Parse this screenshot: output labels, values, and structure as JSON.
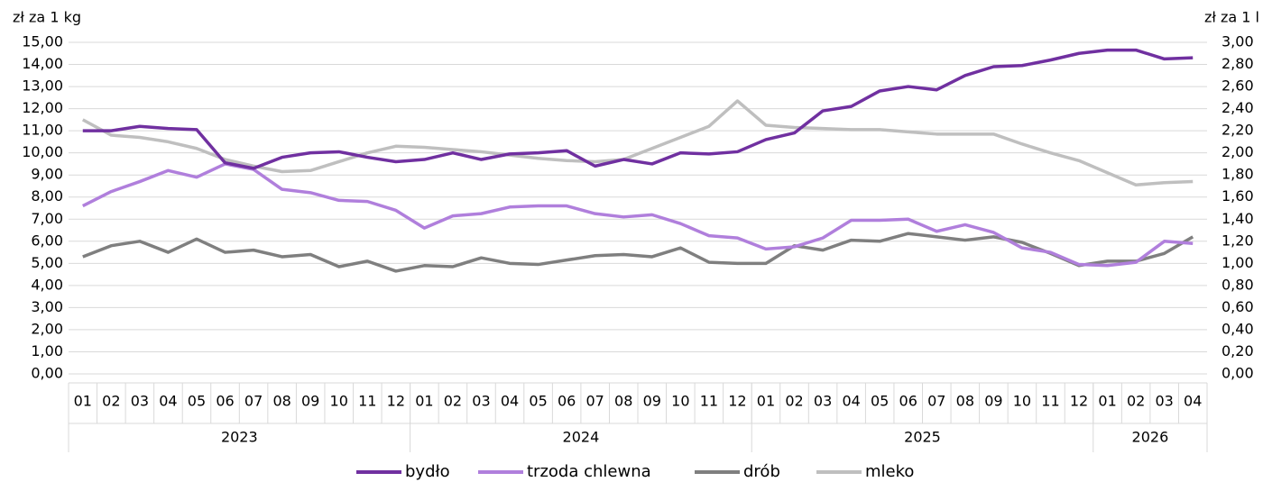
{
  "chart_data": {
    "type": "line",
    "y_label": "zł za 1 kg",
    "y2_label": "zł za 1 l",
    "categories": [
      "01",
      "02",
      "03",
      "04",
      "05",
      "06",
      "07",
      "08",
      "09",
      "10",
      "11",
      "12",
      "01",
      "02",
      "03",
      "04",
      "05",
      "06",
      "07",
      "08",
      "09",
      "10",
      "11",
      "12",
      "01",
      "02",
      "03",
      "04",
      "05",
      "06",
      "07",
      "08",
      "09",
      "10",
      "11",
      "12",
      "01",
      "02",
      "03",
      "04"
    ],
    "category_groups": [
      {
        "name": "2023",
        "size": 12
      },
      {
        "name": "2024",
        "size": 12
      },
      {
        "name": "2025",
        "size": 12
      },
      {
        "name": "2026",
        "size": 4
      }
    ],
    "series": [
      {
        "name": "bydło",
        "color": "#7030a0",
        "values": [
          11.0,
          11.0,
          11.2,
          11.1,
          11.05,
          9.55,
          9.3,
          9.8,
          10.0,
          10.05,
          9.8,
          9.6,
          9.7,
          10.0,
          9.7,
          9.95,
          10.0,
          10.1,
          9.4,
          9.7,
          9.5,
          10.0,
          9.95,
          10.05,
          10.6,
          10.9,
          11.9,
          12.1,
          12.8,
          13.0,
          12.85,
          13.5,
          13.9,
          13.95,
          14.2,
          14.5,
          14.65,
          14.65,
          14.25,
          14.3
        ]
      },
      {
        "name": "trzoda chlewna",
        "color": "#b07fdc",
        "values": [
          7.6,
          8.25,
          8.7,
          9.2,
          8.9,
          9.5,
          9.25,
          8.35,
          8.2,
          7.85,
          7.8,
          7.4,
          6.6,
          7.15,
          7.25,
          7.55,
          7.6,
          7.6,
          7.25,
          7.1,
          7.2,
          6.8,
          6.25,
          6.15,
          5.65,
          5.75,
          6.15,
          6.95,
          6.95,
          7.0,
          6.45,
          6.75,
          6.4,
          5.7,
          5.5,
          4.95,
          4.9,
          5.05,
          6.0,
          5.9
        ]
      },
      {
        "name": "drób",
        "color": "#7f7f7f",
        "values": [
          5.3,
          5.8,
          6.0,
          5.5,
          6.1,
          5.5,
          5.6,
          5.3,
          5.4,
          4.85,
          5.1,
          4.65,
          4.9,
          4.85,
          5.25,
          5.0,
          4.95,
          5.15,
          5.35,
          5.4,
          5.3,
          5.7,
          5.05,
          5.0,
          5.0,
          5.8,
          5.6,
          6.05,
          6.0,
          6.35,
          6.2,
          6.05,
          6.2,
          5.95,
          5.45,
          4.9,
          5.1,
          5.1,
          5.45,
          6.2
        ]
      },
      {
        "name": "mleko",
        "color": "#bfbfbf",
        "axis": "y2",
        "values": [
          2.3,
          2.16,
          2.14,
          2.1,
          2.04,
          1.94,
          1.88,
          1.83,
          1.84,
          1.92,
          2.0,
          2.06,
          2.05,
          2.03,
          2.01,
          1.98,
          1.95,
          1.93,
          1.92,
          1.94,
          2.04,
          2.14,
          2.24,
          2.47,
          2.25,
          2.23,
          2.22,
          2.21,
          2.21,
          2.19,
          2.17,
          2.17,
          2.17,
          2.08,
          2.0,
          1.93,
          1.82,
          1.71,
          1.73,
          1.74
        ]
      }
    ],
    "ylim": [
      0,
      15
    ],
    "yticks": [
      {
        "value": 0,
        "label": "0,00"
      },
      {
        "value": 1,
        "label": "1,00"
      },
      {
        "value": 2,
        "label": "2,00"
      },
      {
        "value": 3,
        "label": "3,00"
      },
      {
        "value": 4,
        "label": "4,00"
      },
      {
        "value": 5,
        "label": "5,00"
      },
      {
        "value": 6,
        "label": "6,00"
      },
      {
        "value": 7,
        "label": "7,00"
      },
      {
        "value": 8,
        "label": "8,00"
      },
      {
        "value": 9,
        "label": "9,00"
      },
      {
        "value": 10,
        "label": "10,00"
      },
      {
        "value": 11,
        "label": "11,00"
      },
      {
        "value": 12,
        "label": "12,00"
      },
      {
        "value": 13,
        "label": "13,00"
      },
      {
        "value": 14,
        "label": "14,00"
      },
      {
        "value": 15,
        "label": "15,00"
      }
    ],
    "y2lim": [
      0,
      3
    ],
    "y2ticks": [
      {
        "value": 0,
        "label": "0,00"
      },
      {
        "value": 0.2,
        "label": "0,20"
      },
      {
        "value": 0.4,
        "label": "0,40"
      },
      {
        "value": 0.6,
        "label": "0,60"
      },
      {
        "value": 0.8,
        "label": "0,80"
      },
      {
        "value": 1,
        "label": "1,00"
      },
      {
        "value": 1.2,
        "label": "1,20"
      },
      {
        "value": 1.4,
        "label": "1,40"
      },
      {
        "value": 1.6,
        "label": "1,60"
      },
      {
        "value": 1.8,
        "label": "1,80"
      },
      {
        "value": 2,
        "label": "2,00"
      },
      {
        "value": 2.2,
        "label": "2,20"
      },
      {
        "value": 2.4,
        "label": "2,40"
      },
      {
        "value": 2.6,
        "label": "2,60"
      },
      {
        "value": 2.8,
        "label": "2,80"
      },
      {
        "value": 3,
        "label": "3,00"
      }
    ],
    "grid": true,
    "legend": "bottom"
  }
}
